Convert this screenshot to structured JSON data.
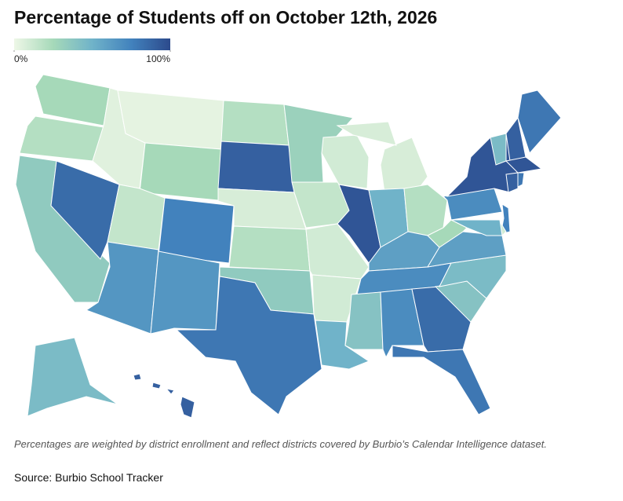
{
  "chart_data": {
    "type": "choropleth",
    "title": "Percentage of Students off on October 12th, 2026",
    "values": [
      25,
      20,
      35,
      85,
      5,
      3,
      25,
      15,
      75,
      65,
      65,
      20,
      90,
      8,
      20,
      35,
      80,
      30,
      15,
      10,
      10,
      50,
      10,
      8,
      95,
      50,
      20,
      60,
      70,
      40,
      70,
      85,
      80,
      40,
      45,
      60,
      25,
      70,
      95,
      75,
      10,
      50,
      45,
      90,
      80,
      95,
      90,
      80,
      45,
      90
    ],
    "colorscale": [
      "#eef7e7",
      "#a6d9b9",
      "#70b3c9",
      "#4282bd",
      "#2c4a8c"
    ],
    "zlim": [
      0,
      100
    ],
    "zticks": [
      {
        "value": 0,
        "label": "0%"
      },
      {
        "value": 100,
        "label": "100%"
      }
    ],
    "note": "Percentages are weighted by district enrollment and reflect districts covered by Burbio’s Calendar Intelligence dataset.",
    "source": "Source: Burbio School Tracker"
  }
}
